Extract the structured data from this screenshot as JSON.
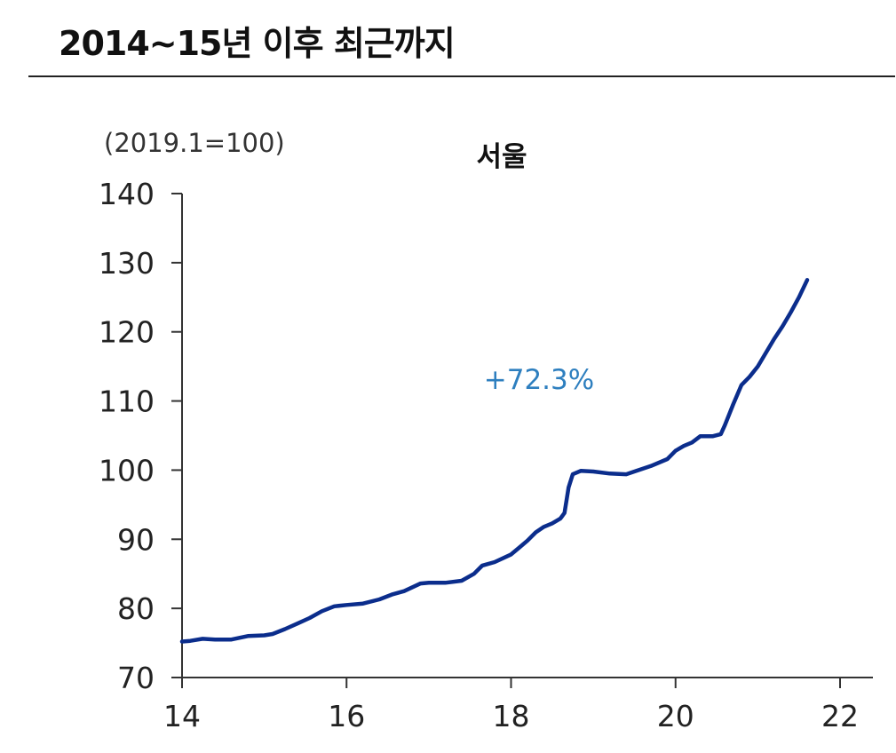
{
  "header": {
    "title": "2014~15년 이후 최근까지"
  },
  "chart_data": {
    "type": "line",
    "title": "서울",
    "unit_label": "(2019.1=100)",
    "annotation": "+72.3%",
    "xlim": [
      14,
      22
    ],
    "ylim": [
      70,
      140
    ],
    "x_ticks": [
      14,
      16,
      18,
      20,
      22
    ],
    "y_ticks": [
      70,
      80,
      90,
      100,
      110,
      120,
      130,
      140
    ],
    "x_tick_labels": [
      "14",
      "16",
      "18",
      "20",
      "22"
    ],
    "y_tick_labels": [
      "70",
      "80",
      "90",
      "100",
      "110",
      "120",
      "130",
      "140"
    ],
    "grid": false,
    "colors": {
      "line": "#0b2d8c",
      "annotation": "#2e7fbf",
      "axis": "#333333"
    },
    "series": [
      {
        "x": [
          14.0,
          14.1,
          14.25,
          14.4,
          14.6,
          14.8,
          15.0,
          15.1,
          15.25,
          15.4,
          15.55,
          15.7,
          15.85,
          16.0,
          16.2,
          16.4,
          16.55,
          16.7,
          16.9,
          17.0,
          17.2,
          17.4,
          17.55,
          17.65,
          17.8,
          18.0,
          18.1,
          18.2,
          18.3,
          18.4,
          18.5,
          18.6,
          18.65,
          18.7,
          18.75,
          18.85,
          19.0,
          19.2,
          19.4,
          19.5,
          19.7,
          19.9,
          20.0,
          20.1,
          20.2,
          20.3,
          20.45,
          20.55,
          20.6,
          20.7,
          20.8,
          20.9,
          21.0,
          21.1,
          21.2,
          21.3,
          21.4,
          21.5,
          21.6
        ],
        "y": [
          75.2,
          75.3,
          75.6,
          75.5,
          75.5,
          76.0,
          76.1,
          76.3,
          77.0,
          77.8,
          78.6,
          79.6,
          80.3,
          80.5,
          80.7,
          81.3,
          82.0,
          82.5,
          83.6,
          83.7,
          83.7,
          84.0,
          85.0,
          86.2,
          86.7,
          87.8,
          88.8,
          89.8,
          91.0,
          91.8,
          92.3,
          93.0,
          93.8,
          97.5,
          99.4,
          99.9,
          99.8,
          99.5,
          99.4,
          99.8,
          100.6,
          101.6,
          102.8,
          103.5,
          104.0,
          104.9,
          104.9,
          105.2,
          106.5,
          109.5,
          112.3,
          113.5,
          115.0,
          117.0,
          119.0,
          120.8,
          122.8,
          125.0,
          127.5
        ]
      }
    ]
  }
}
